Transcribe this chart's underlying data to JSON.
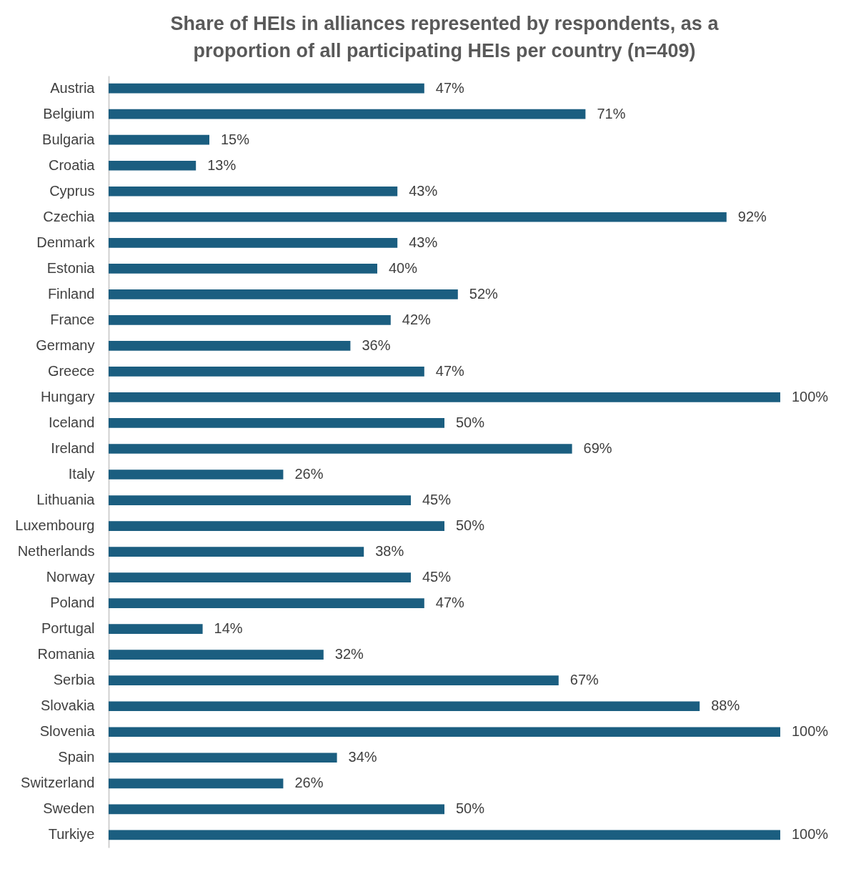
{
  "chart_data": {
    "type": "bar",
    "orientation": "horizontal",
    "title": "Share of HEIs in alliances represented by respondents, as a proportion of all participating HEIs per country (n=409)",
    "categories": [
      "Austria",
      "Belgium",
      "Bulgaria",
      "Croatia",
      "Cyprus",
      "Czechia",
      "Denmark",
      "Estonia",
      "Finland",
      "France",
      "Germany",
      "Greece",
      "Hungary",
      "Iceland",
      "Ireland",
      "Italy",
      "Lithuania",
      "Luxembourg",
      "Netherlands",
      "Norway",
      "Poland",
      "Portugal",
      "Romania",
      "Serbia",
      "Slovakia",
      "Slovenia",
      "Spain",
      "Switzerland",
      "Sweden",
      "Turkiye"
    ],
    "values": [
      47,
      71,
      15,
      13,
      43,
      92,
      43,
      40,
      52,
      42,
      36,
      47,
      100,
      50,
      69,
      26,
      45,
      50,
      38,
      45,
      47,
      14,
      32,
      67,
      88,
      100,
      34,
      26,
      50,
      100
    ],
    "value_labels": [
      "47%",
      "71%",
      "15%",
      "13%",
      "43%",
      "92%",
      "43%",
      "40%",
      "52%",
      "42%",
      "36%",
      "47%",
      "100%",
      "50%",
      "69%",
      "26%",
      "45%",
      "50%",
      "38%",
      "45%",
      "47%",
      "14%",
      "32%",
      "67%",
      "88%",
      "100%",
      "34%",
      "26%",
      "50%",
      "100%"
    ],
    "color": "#1b5e80"
  }
}
